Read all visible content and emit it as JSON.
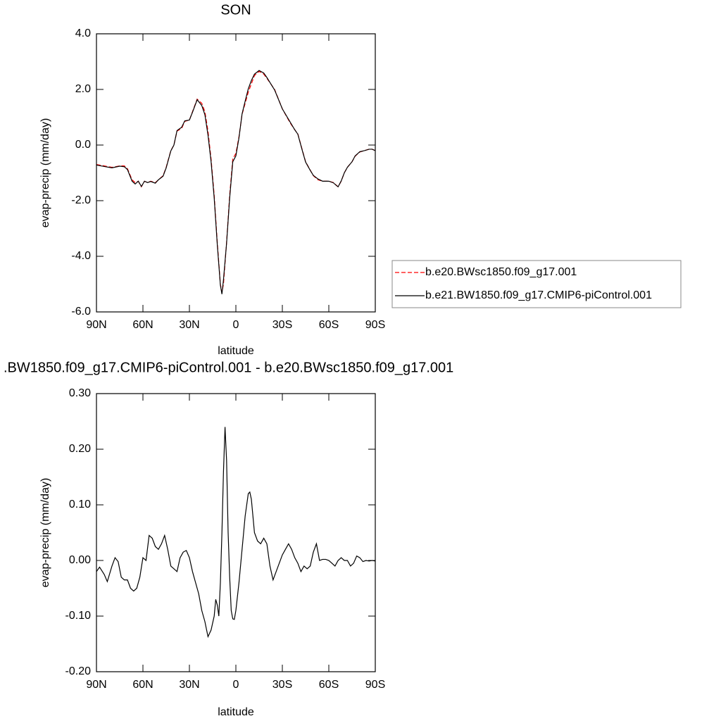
{
  "chart_data": [
    {
      "type": "line",
      "title": "SON",
      "xlabel": "latitude",
      "ylabel": "evap-precip (mm/day)",
      "x": [
        90,
        85,
        80,
        75,
        72,
        70,
        67,
        65,
        63,
        61,
        59,
        57,
        55,
        52,
        50,
        47,
        45,
        42,
        40,
        38,
        35,
        33,
        30,
        28,
        25,
        22,
        20,
        18,
        16,
        14,
        12,
        10,
        9,
        8,
        6,
        4,
        2,
        0,
        -2,
        -4,
        -6,
        -8,
        -10,
        -12,
        -15,
        -18,
        -20,
        -25,
        -30,
        -35,
        -38,
        -40,
        -43,
        -45,
        -48,
        -50,
        -53,
        -56,
        -60,
        -63,
        -65,
        -66,
        -68,
        -70,
        -72,
        -75,
        -77,
        -80,
        -83,
        -86,
        -88,
        -90
      ],
      "series": [
        {
          "name": "b.e20.BWsc1850.f09_g17.001",
          "color": "#ff0000",
          "dash": true,
          "values": [
            -0.7,
            -0.75,
            -0.8,
            -0.75,
            -0.75,
            -0.85,
            -1.25,
            -1.35,
            -1.3,
            -1.5,
            -1.3,
            -1.35,
            -1.3,
            -1.35,
            -1.25,
            -1.1,
            -0.8,
            -0.2,
            0.0,
            0.5,
            0.6,
            0.85,
            0.9,
            1.2,
            1.65,
            1.5,
            1.2,
            0.5,
            -0.5,
            -1.8,
            -3.5,
            -5.0,
            -5.3,
            -5.0,
            -3.5,
            -1.8,
            -0.5,
            -0.3,
            0.3,
            1.1,
            1.5,
            1.9,
            2.2,
            2.5,
            2.65,
            2.55,
            2.4,
            2.0,
            1.3,
            0.8,
            0.55,
            0.4,
            -0.2,
            -0.6,
            -0.9,
            -1.1,
            -1.25,
            -1.3,
            -1.3,
            -1.35,
            -1.45,
            -1.5,
            -1.3,
            -1.0,
            -0.8,
            -0.6,
            -0.4,
            -0.25,
            -0.2,
            -0.15,
            -0.15,
            -0.2
          ]
        },
        {
          "name": "b.e21.BW1850.f09_g17.CMIP6-piControl.001",
          "color": "#000000",
          "dash": false,
          "values": [
            -0.72,
            -0.77,
            -0.82,
            -0.76,
            -0.78,
            -0.88,
            -1.3,
            -1.4,
            -1.3,
            -1.49,
            -1.3,
            -1.35,
            -1.31,
            -1.37,
            -1.25,
            -1.12,
            -0.82,
            -0.21,
            0.0,
            0.52,
            0.64,
            0.87,
            0.9,
            1.18,
            1.63,
            1.42,
            1.09,
            0.36,
            -0.6,
            -1.9,
            -3.58,
            -5.04,
            -5.36,
            -4.84,
            -3.53,
            -1.9,
            -0.6,
            -0.39,
            0.26,
            1.12,
            1.58,
            2.02,
            2.32,
            2.55,
            2.68,
            2.59,
            2.43,
            1.98,
            1.3,
            0.83,
            0.55,
            0.39,
            -0.22,
            -0.61,
            -0.91,
            -1.09,
            -1.22,
            -1.3,
            -1.3,
            -1.36,
            -1.46,
            -1.5,
            -1.29,
            -1.0,
            -0.8,
            -0.6,
            -0.39,
            -0.24,
            -0.2,
            -0.15,
            -0.15,
            -0.2
          ]
        }
      ],
      "xlim": [
        90,
        -90
      ],
      "xticks": [
        {
          "value": 90,
          "label": "90N"
        },
        {
          "value": 60,
          "label": "60N"
        },
        {
          "value": 30,
          "label": "30N"
        },
        0,
        {
          "value": -30,
          "label": "30S"
        },
        {
          "value": -60,
          "label": "60S"
        },
        {
          "value": -90,
          "label": "90S"
        }
      ],
      "ylim": [
        -6,
        4
      ],
      "yticks": [
        {
          "value": -6,
          "label": "-6.0"
        },
        {
          "value": -4,
          "label": "-4.0"
        },
        {
          "value": -2,
          "label": "-2.0"
        },
        {
          "value": 0,
          "label": "0.0"
        },
        {
          "value": 2,
          "label": "2.0"
        },
        {
          "value": 4,
          "label": "4.0"
        }
      ],
      "legend": "right"
    },
    {
      "type": "line",
      "title": ".BW1850.f09_g17.CMIP6-piControl.001 - b.e20.BWsc1850.f09_g17.001",
      "xlabel": "latitude",
      "ylabel": "evap-precip (mm/day)",
      "x": [
        90,
        88,
        85,
        83,
        80,
        78,
        76,
        74,
        72,
        70,
        68,
        66,
        64,
        62,
        60,
        58,
        56,
        54,
        52,
        50,
        48,
        46,
        44,
        42,
        40,
        38,
        36,
        34,
        32,
        30,
        28,
        26,
        24,
        22,
        20,
        18,
        16,
        14,
        13,
        12,
        11,
        10,
        9,
        8,
        7,
        6,
        5,
        4,
        3,
        2,
        1,
        0,
        -2,
        -4,
        -6,
        -8,
        -9,
        -10,
        -12,
        -14,
        -16,
        -18,
        -20,
        -22,
        -24,
        -26,
        -28,
        -30,
        -32,
        -34,
        -36,
        -38,
        -40,
        -42,
        -44,
        -46,
        -48,
        -50,
        -52,
        -54,
        -56,
        -58,
        -60,
        -62,
        -64,
        -66,
        -68,
        -70,
        -72,
        -74,
        -76,
        -78,
        -80,
        -82,
        -84,
        -86,
        -88,
        -90
      ],
      "series": [
        {
          "color": "#000000",
          "dash": false,
          "values": [
            -0.02,
            -0.012,
            -0.025,
            -0.038,
            -0.01,
            0.005,
            -0.002,
            -0.03,
            -0.035,
            -0.035,
            -0.05,
            -0.055,
            -0.05,
            -0.03,
            0.005,
            0.0,
            0.045,
            0.04,
            0.025,
            0.02,
            0.03,
            0.045,
            0.02,
            -0.01,
            -0.015,
            -0.02,
            0.005,
            0.015,
            0.018,
            0.005,
            -0.02,
            -0.04,
            -0.06,
            -0.09,
            -0.11,
            -0.137,
            -0.125,
            -0.1,
            -0.07,
            -0.08,
            -0.1,
            -0.04,
            0.05,
            0.16,
            0.24,
            0.18,
            0.05,
            -0.03,
            -0.09,
            -0.105,
            -0.106,
            -0.09,
            -0.04,
            0.02,
            0.08,
            0.12,
            0.123,
            0.11,
            0.05,
            0.035,
            0.03,
            0.04,
            0.03,
            -0.01,
            -0.035,
            -0.02,
            -0.005,
            0.01,
            0.02,
            0.03,
            0.02,
            0.005,
            -0.005,
            -0.02,
            -0.01,
            -0.015,
            -0.01,
            0.015,
            0.03,
            0.0,
            0.002,
            0.002,
            0.0,
            -0.005,
            -0.01,
            0.0,
            0.005,
            0.0,
            0.0,
            -0.01,
            -0.005,
            0.008,
            0.005,
            -0.002,
            0.0,
            -0.001,
            0.0,
            -0.001
          ]
        }
      ],
      "xlim": [
        90,
        -90
      ],
      "xticks": [
        {
          "value": 90,
          "label": "90N"
        },
        {
          "value": 60,
          "label": "60N"
        },
        {
          "value": 30,
          "label": "30N"
        },
        0,
        {
          "value": -30,
          "label": "30S"
        },
        {
          "value": -60,
          "label": "60S"
        },
        {
          "value": -90,
          "label": "90S"
        }
      ],
      "ylim": [
        -0.2,
        0.3
      ],
      "yticks": [
        {
          "value": -0.2,
          "label": "-0.20"
        },
        {
          "value": -0.1,
          "label": "-0.10"
        },
        {
          "value": 0,
          "label": "0.00"
        },
        {
          "value": 0.1,
          "label": "0.10"
        },
        {
          "value": 0.2,
          "label": "0.20"
        },
        {
          "value": 0.3,
          "label": "0.30"
        }
      ]
    }
  ]
}
